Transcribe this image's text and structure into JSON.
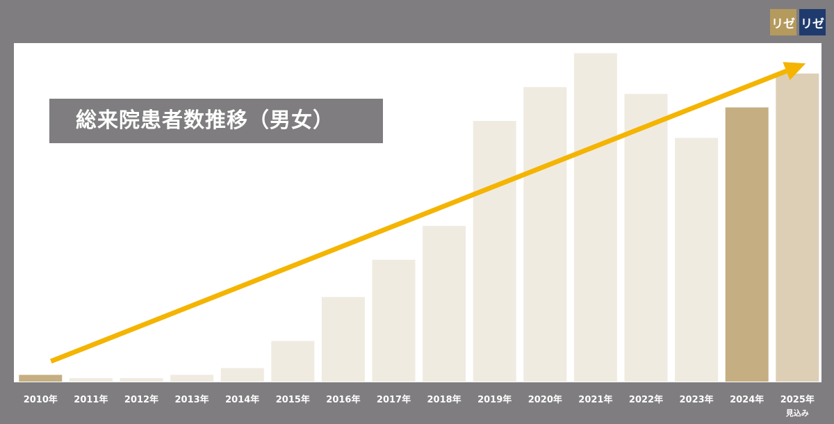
{
  "title": "総来院患者数推移（男女）",
  "logos": [
    {
      "text": "リゼ",
      "color": "#b59a5d"
    },
    {
      "text": "リゼ",
      "color": "#1f3b6e"
    }
  ],
  "colors": {
    "background": "#7f7d80",
    "plot_background": "#ffffff",
    "bar_faded": "#f0ebe1",
    "bar_highlight": "#c5ae82",
    "arrow": "#f4b400"
  },
  "chart_data": {
    "type": "bar",
    "categories": [
      "2010年",
      "2011年",
      "2012年",
      "2013年",
      "2014年",
      "2015年",
      "2016年",
      "2017年",
      "2018年",
      "2019年",
      "2020年",
      "2021年",
      "2022年",
      "2023年",
      "2024年",
      "2025年"
    ],
    "category_sublabels": [
      "",
      "",
      "",
      "",
      "",
      "",
      "",
      "",
      "",
      "",
      "",
      "",
      "",
      "",
      "",
      "見込み"
    ],
    "values": [
      2,
      1,
      1,
      2,
      4,
      12,
      25,
      36,
      46,
      77,
      87,
      97,
      85,
      72,
      81,
      91
    ],
    "highlighted": [
      true,
      false,
      false,
      false,
      false,
      false,
      false,
      false,
      false,
      false,
      false,
      false,
      false,
      false,
      true,
      false
    ],
    "ylim": [
      0,
      100
    ],
    "trend_arrow": {
      "from": {
        "x": "2010年",
        "y": 6
      },
      "to": {
        "x": "2025年",
        "y": 94
      }
    },
    "title": "総来院患者数推移（男女）",
    "xlabel": "",
    "ylabel": "",
    "grid": false,
    "legend": "none"
  }
}
